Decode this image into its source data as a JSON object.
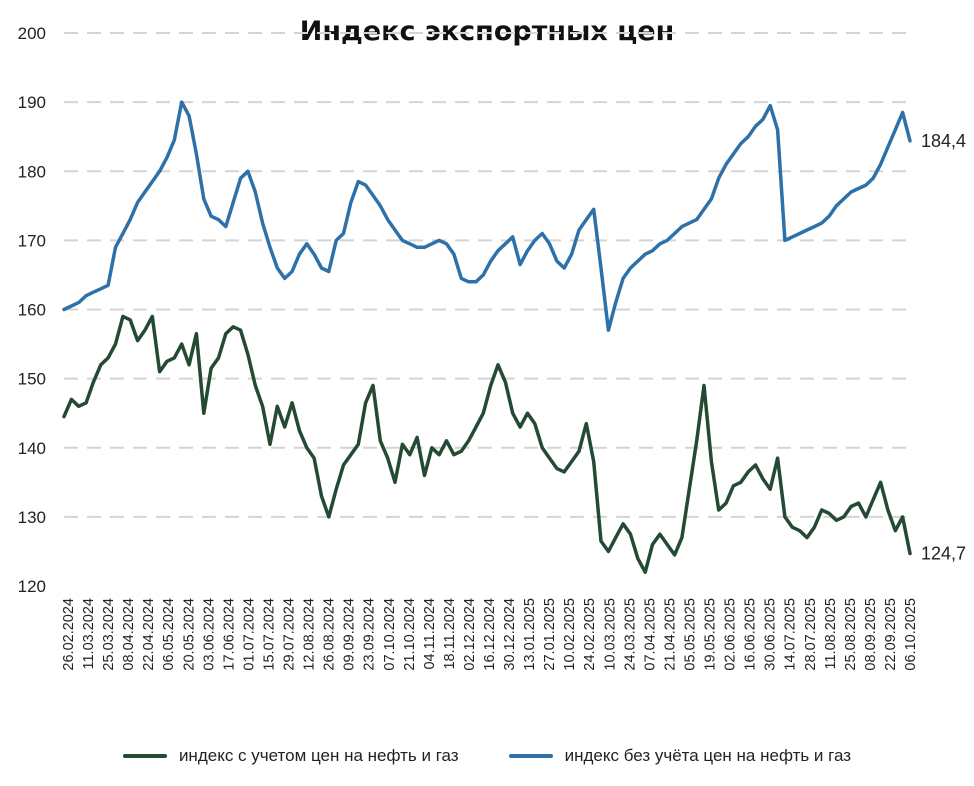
{
  "chart_data": {
    "type": "line",
    "title": "Индекс экспортных цен",
    "ylim": [
      120,
      200
    ],
    "yticks": [
      120,
      130,
      140,
      150,
      160,
      170,
      180,
      190,
      200
    ],
    "grid": "horizontal dashed",
    "legend_position": "bottom",
    "x_tick_labels": [
      "26.02.2024",
      "11.03.2024",
      "25.03.2024",
      "08.04.2024",
      "22.04.2024",
      "06.05.2024",
      "20.05.2024",
      "03.06.2024",
      "17.06.2024",
      "01.07.2024",
      "15.07.2024",
      "29.07.2024",
      "12.08.2024",
      "26.08.2024",
      "09.09.2024",
      "23.09.2024",
      "07.10.2024",
      "21.10.2024",
      "04.11.2024",
      "18.11.2024",
      "02.12.2024",
      "16.12.2024",
      "30.12.2024",
      "13.01.2025",
      "27.01.2025",
      "10.02.2025",
      "24.02.2025",
      "10.03.2025",
      "24.03.2025",
      "07.04.2025",
      "21.04.2025",
      "05.05.2025",
      "19.05.2025",
      "02.06.2025",
      "16.06.2025",
      "30.06.2025",
      "14.07.2025",
      "28.07.2025",
      "11.08.2025",
      "25.08.2025",
      "08.09.2025",
      "22.09.2025",
      "06.10.2025"
    ],
    "series": [
      {
        "name": "индекс с учетом цен на нефть и газ",
        "color": "#244a33",
        "end_label": "124,7",
        "values": [
          144.5,
          147.0,
          146.0,
          146.5,
          149.5,
          152.0,
          153.0,
          155.0,
          159.0,
          158.5,
          155.5,
          157.0,
          159.0,
          151.0,
          152.5,
          153.0,
          155.0,
          152.0,
          156.5,
          145.0,
          151.5,
          153.0,
          156.5,
          157.5,
          157.0,
          153.5,
          149.0,
          146.0,
          140.5,
          146.0,
          143.0,
          146.5,
          142.5,
          140.0,
          138.5,
          133.0,
          130.0,
          134.0,
          137.5,
          139.0,
          140.5,
          146.5,
          149.0,
          141.0,
          138.5,
          135.0,
          140.5,
          139.0,
          141.5,
          136.0,
          140.0,
          139.0,
          141.0,
          139.0,
          139.5,
          141.0,
          143.0,
          145.0,
          149.0,
          152.0,
          149.5,
          145.0,
          143.0,
          145.0,
          143.5,
          140.0,
          138.5,
          137.0,
          136.5,
          138.0,
          139.5,
          143.5,
          138.0,
          126.5,
          125.0,
          127.0,
          129.0,
          127.5,
          124.0,
          122.0,
          126.0,
          127.5,
          126.0,
          124.5,
          127.0,
          134.0,
          141.0,
          149.0,
          138.0,
          131.0,
          132.0,
          134.5,
          135.0,
          136.5,
          137.5,
          135.5,
          134.0,
          138.5,
          130.0,
          128.5,
          128.0,
          127.0,
          128.5,
          131.0,
          130.5,
          129.5,
          130.0,
          131.5,
          132.0,
          130.0,
          132.5,
          135.0,
          131.0,
          128.0,
          130.0,
          124.7
        ]
      },
      {
        "name": "индекс без учёта цен на нефть и газ",
        "color": "#2e71a8",
        "end_label": "184,4",
        "values": [
          160.0,
          160.5,
          161.0,
          162.0,
          162.5,
          163.0,
          163.5,
          169.0,
          171.0,
          173.0,
          175.5,
          177.0,
          178.5,
          180.0,
          182.0,
          184.5,
          190.0,
          188.0,
          182.5,
          176.0,
          173.5,
          173.0,
          172.0,
          175.5,
          179.0,
          180.0,
          177.0,
          172.5,
          169.0,
          166.0,
          164.5,
          165.5,
          168.0,
          169.5,
          168.0,
          166.0,
          165.5,
          170.0,
          171.0,
          175.5,
          178.5,
          178.0,
          176.5,
          175.0,
          173.0,
          171.5,
          170.0,
          169.5,
          169.0,
          169.0,
          169.5,
          170.0,
          169.5,
          168.0,
          164.5,
          164.0,
          164.0,
          165.0,
          167.0,
          168.5,
          169.5,
          170.5,
          166.5,
          168.5,
          170.0,
          171.0,
          169.5,
          167.0,
          166.0,
          168.0,
          171.5,
          173.0,
          174.5,
          166.0,
          157.0,
          161.0,
          164.5,
          166.0,
          167.0,
          168.0,
          168.5,
          169.5,
          170.0,
          171.0,
          172.0,
          172.5,
          173.0,
          174.5,
          176.0,
          179.0,
          181.0,
          182.5,
          184.0,
          185.0,
          186.5,
          187.5,
          189.5,
          186.0,
          170.0,
          170.5,
          171.0,
          171.5,
          172.0,
          172.5,
          173.5,
          175.0,
          176.0,
          177.0,
          177.5,
          178.0,
          179.0,
          181.0,
          183.5,
          186.0,
          188.5,
          184.4
        ]
      }
    ]
  }
}
